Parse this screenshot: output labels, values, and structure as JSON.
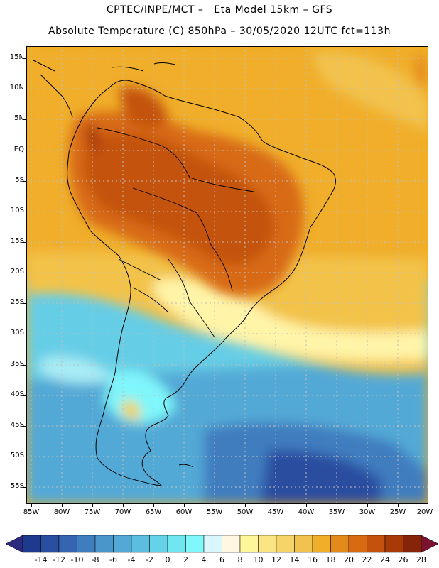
{
  "header": {
    "line1": "CPTEC/INPE/MCT –   Eta Model 15km – GFS",
    "line2": "Absolute Temperature (C) 850hPa – 30/05/2020 12UTC fct=113h"
  },
  "axes": {
    "lat_labels": [
      "15N",
      "10N",
      "5N",
      "EQ",
      "5S",
      "10S",
      "15S",
      "20S",
      "25S",
      "30S",
      "35S",
      "40S",
      "45S",
      "50S",
      "55S"
    ],
    "lon_labels": [
      "85W",
      "80W",
      "75W",
      "70W",
      "65W",
      "60W",
      "55W",
      "50W",
      "45W",
      "40W",
      "35W",
      "30W",
      "25W",
      "20W"
    ]
  },
  "colorbar": {
    "labels": [
      "-14",
      "-12",
      "-10",
      "-8",
      "-6",
      "-4",
      "-2",
      "0",
      "2",
      "4",
      "6",
      "8",
      "10",
      "12",
      "14",
      "16",
      "18",
      "20",
      "22",
      "24",
      "26",
      "28"
    ],
    "colors": [
      "#1e3a8c",
      "#2a4ea0",
      "#3565b0",
      "#3f7dbf",
      "#4995cc",
      "#52a9d6",
      "#5cbde0",
      "#66d2e8",
      "#6fe6f0",
      "#7ff7fb",
      "#d8f6fb",
      "#fff7df",
      "#fff59a",
      "#fbe582",
      "#f6d46a",
      "#f2c24e",
      "#f0ae2a",
      "#e48a1c",
      "#d86a12",
      "#c4520c",
      "#a83a08",
      "#862408"
    ],
    "under_color": "#2b2a7f",
    "over_color": "#7a1230"
  }
}
